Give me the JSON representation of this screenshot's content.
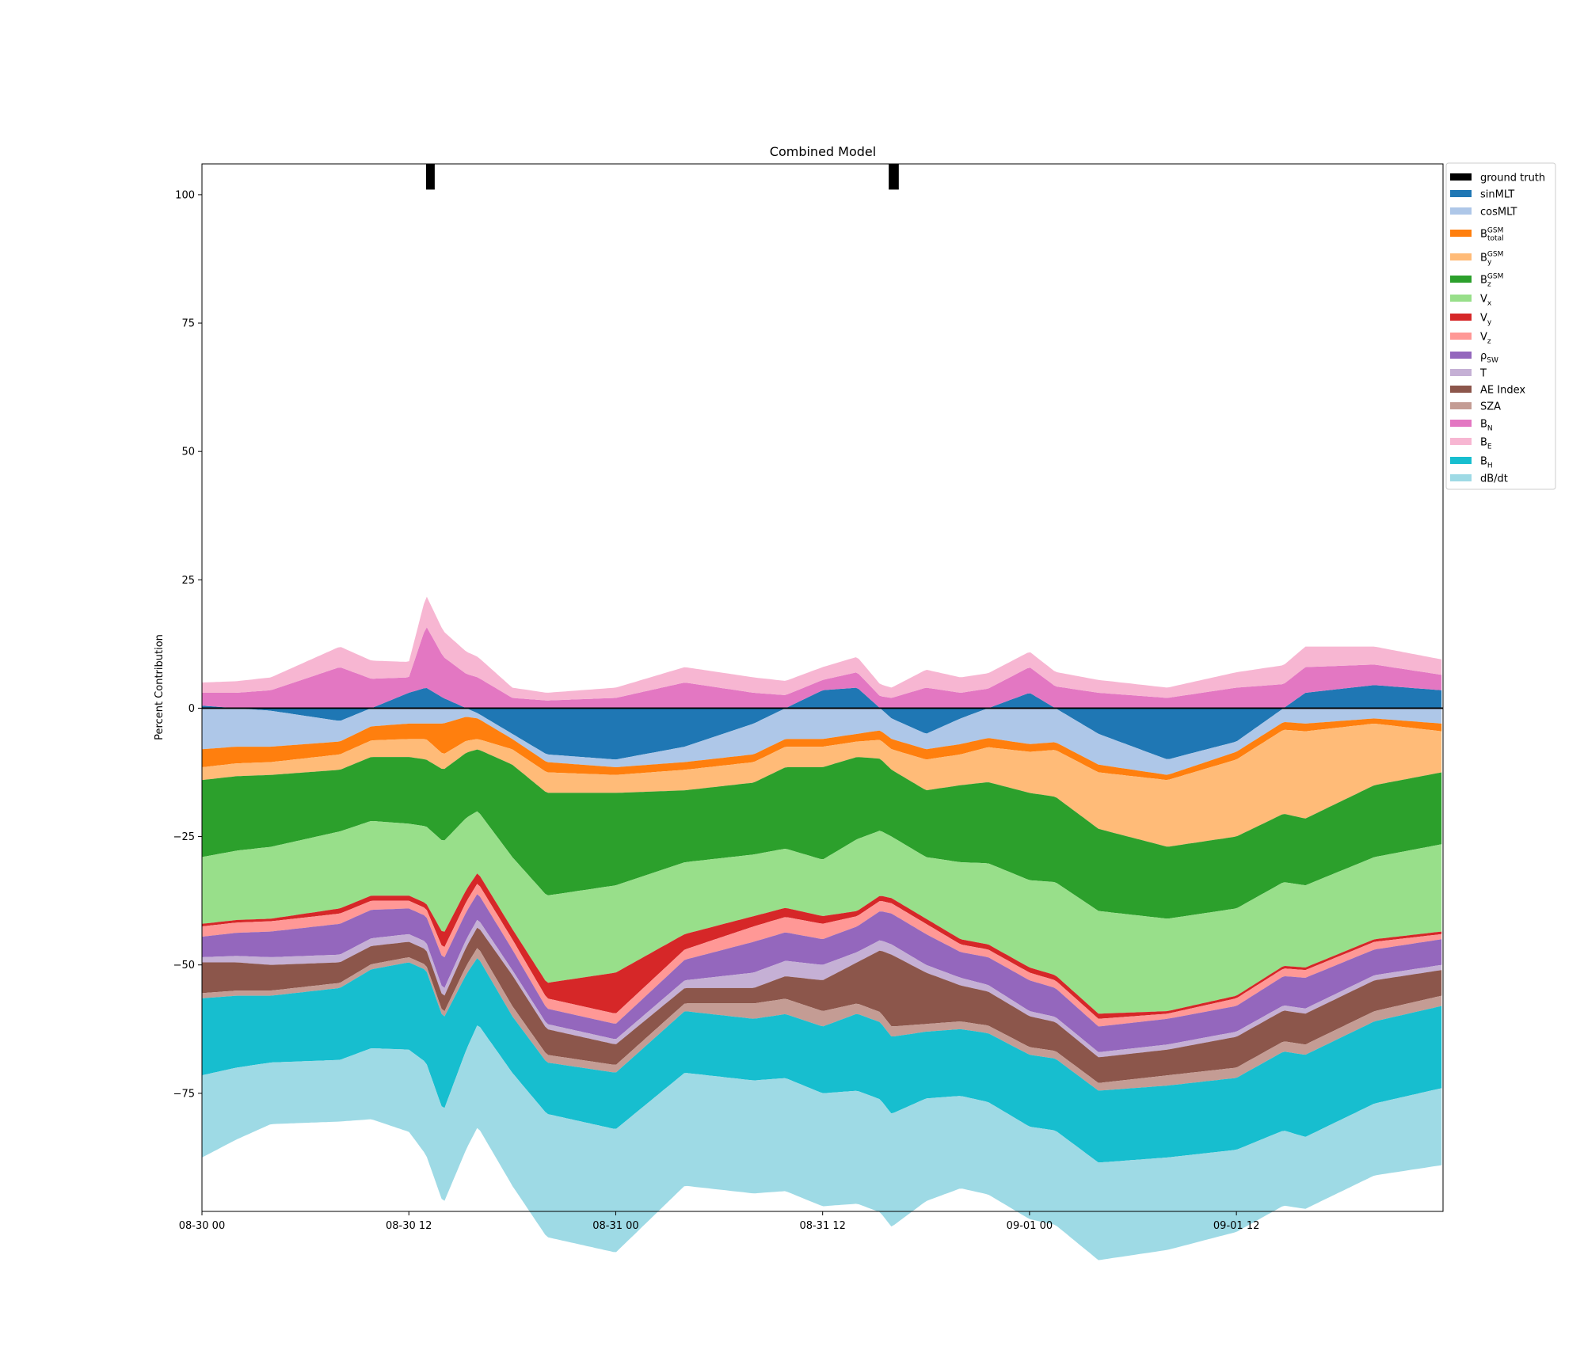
{
  "chart_data": {
    "type": "area",
    "title": "Combined Model",
    "ylabel": "Percent Contribution",
    "xlabel": "",
    "x_range": [
      "2017-08-30 00:00",
      "2017-09-01 23:59"
    ],
    "ylim": [
      -98,
      106
    ],
    "x_ticks": [
      {
        "label": "08-30 00",
        "t": "2017-08-30 00:00"
      },
      {
        "label": "08-30 12",
        "t": "2017-08-30 12:00"
      },
      {
        "label": "08-31 00",
        "t": "2017-08-31 00:00"
      },
      {
        "label": "08-31 12",
        "t": "2017-08-31 12:00"
      },
      {
        "label": "09-01 00",
        "t": "2017-09-01 00:00"
      },
      {
        "label": "09-01 12",
        "t": "2017-09-01 12:00"
      }
    ],
    "y_ticks": [
      {
        "label": "100",
        "v": 100
      },
      {
        "label": "75",
        "v": 75
      },
      {
        "label": "50",
        "v": 50
      },
      {
        "label": "25",
        "v": 25
      },
      {
        "label": "0",
        "v": 0
      },
      {
        "label": "−25",
        "v": -25
      },
      {
        "label": "−50",
        "v": -50
      },
      {
        "label": "−75",
        "v": -75
      }
    ],
    "ground_truth": [
      {
        "start": "2017-08-30 13:00",
        "end": "2017-08-30 13:30",
        "y0": 101,
        "y1": 106
      },
      {
        "start": "2017-08-31 15:50",
        "end": "2017-08-31 16:25",
        "y0": 101,
        "y1": 106
      }
    ],
    "legend": {
      "placement": "outside-upper-right",
      "entries": [
        {
          "label": "ground truth",
          "color": "#000000"
        },
        {
          "label": "sinMLT",
          "color": "#1f77b4"
        },
        {
          "label": "cosMLT",
          "color": "#aec7e8"
        },
        {
          "base": "B",
          "sub": "total",
          "sup": "GSM",
          "color": "#ff7f0e"
        },
        {
          "base": "B",
          "sub": "y",
          "sup": "GSM",
          "color": "#ffbb78"
        },
        {
          "base": "B",
          "sub": "z",
          "sup": "GSM",
          "color": "#2ca02c"
        },
        {
          "base": "V",
          "sub": "x",
          "color": "#98df8a"
        },
        {
          "base": "V",
          "sub": "y",
          "color": "#d62728"
        },
        {
          "base": "V",
          "sub": "z",
          "color": "#ff9896"
        },
        {
          "base": "ρ",
          "sub": "SW",
          "color": "#9467bd"
        },
        {
          "label": "T",
          "color": "#c5b0d5"
        },
        {
          "label": "AE Index",
          "color": "#8c564b"
        },
        {
          "label": "SZA",
          "color": "#c49c94"
        },
        {
          "base": "B",
          "sub": "N",
          "color": "#e377c2"
        },
        {
          "base": "B",
          "sub": "E",
          "color": "#f7b6d2"
        },
        {
          "base": "B",
          "sub": "H",
          "color": "#17becf"
        },
        {
          "label": "dB/dt",
          "color": "#9edae5"
        }
      ]
    },
    "x_hours": [
      0,
      4,
      8,
      12,
      13,
      14,
      16,
      18,
      20,
      24,
      28,
      32,
      36,
      38,
      40,
      42,
      44,
      48,
      52,
      56,
      60,
      64,
      68,
      71.9
    ],
    "series": [
      {
        "key": "sinMLT",
        "color": "#1f77b4",
        "values": [
          0.5,
          -0.5,
          -2.5,
          3.0,
          4.0,
          2.0,
          -1.0,
          -5.0,
          -9.0,
          -10.0,
          -7.5,
          -3.0,
          3.5,
          4.0,
          -2.0,
          -5.0,
          -2.0,
          3.0,
          -5.0,
          -10.0,
          -6.5,
          3.0,
          4.5,
          3.5
        ]
      },
      {
        "key": "cosMLT",
        "color": "#aec7e8",
        "values": [
          -8.0,
          -7.0,
          -4.0,
          -3.0,
          -3.0,
          -3.0,
          -1.0,
          -1.0,
          -1.5,
          -1.5,
          -3.0,
          -6.0,
          -6.0,
          -5.0,
          -4.0,
          -3.0,
          -5.0,
          -7.0,
          -6.0,
          -3.0,
          -2.0,
          -3.0,
          -2.0,
          -3.0
        ]
      },
      {
        "key": "B_total",
        "color": "#ff7f0e",
        "values": [
          -3.5,
          -3.0,
          -2.5,
          -3.0,
          -3.0,
          -6.0,
          -4.0,
          -2.0,
          -2.0,
          -1.5,
          -1.5,
          -1.5,
          -1.5,
          -1.5,
          -2.0,
          -2.0,
          -2.0,
          -1.5,
          -1.5,
          -1.0,
          -1.5,
          -1.5,
          -1.0,
          -1.5
        ]
      },
      {
        "key": "B_y",
        "color": "#ffbb78",
        "values": [
          -2.5,
          -2.5,
          -3.0,
          -3.5,
          -4.0,
          -3.0,
          -2.0,
          -3.0,
          -4.0,
          -3.5,
          -4.0,
          -4.0,
          -4.0,
          -3.0,
          -4.0,
          -6.0,
          -6.0,
          -8.0,
          -11.0,
          -13.0,
          -15.0,
          -17.0,
          -12.0,
          -8.0
        ]
      },
      {
        "key": "B_z",
        "color": "#2ca02c",
        "values": [
          -15.0,
          -14.0,
          -12.0,
          -13.0,
          -13.0,
          -14.0,
          -12.0,
          -18.0,
          -20.0,
          -18.0,
          -14.0,
          -14.0,
          -18.0,
          -16.0,
          -13.0,
          -13.0,
          -15.0,
          -17.0,
          -16.0,
          -14.0,
          -14.0,
          -13.0,
          -14.0,
          -14.0
        ]
      },
      {
        "key": "V_x",
        "color": "#98df8a",
        "values": [
          -13.0,
          -14.0,
          -15.0,
          -14.0,
          -15.0,
          -18.0,
          -12.0,
          -14.0,
          -17.0,
          -17.0,
          -14.0,
          -12.0,
          -11.0,
          -14.0,
          -12.0,
          -12.0,
          -15.0,
          -17.0,
          -20.0,
          -18.0,
          -17.0,
          -16.0,
          -16.0,
          -17.0
        ]
      },
      {
        "key": "V_y",
        "color": "#d62728",
        "values": [
          -0.5,
          -0.5,
          -1.0,
          -1.0,
          -1.0,
          -3.0,
          -2.0,
          -2.0,
          -3.0,
          -8.0,
          -3.0,
          -2.0,
          -1.5,
          -1.0,
          -1.0,
          -1.0,
          -1.0,
          -1.0,
          -1.0,
          -0.5,
          -0.5,
          -0.5,
          -0.5,
          -0.5
        ]
      },
      {
        "key": "V_z",
        "color": "#ff9896",
        "values": [
          -2.0,
          -2.0,
          -2.0,
          -1.5,
          -1.5,
          -2.0,
          -2.0,
          -2.0,
          -2.0,
          -2.0,
          -2.0,
          -3.0,
          -3.0,
          -2.0,
          -2.0,
          -2.0,
          -1.5,
          -1.5,
          -1.5,
          -1.0,
          -1.5,
          -1.5,
          -1.5,
          -1.0
        ]
      },
      {
        "key": "rho_SW",
        "color": "#9467bd",
        "values": [
          -4.0,
          -5.0,
          -6.0,
          -5.0,
          -5.0,
          -6.0,
          -5.0,
          -4.0,
          -3.0,
          -3.0,
          -4.0,
          -6.0,
          -5.0,
          -5.0,
          -6.0,
          -6.0,
          -5.0,
          -6.0,
          -5.0,
          -5.0,
          -5.0,
          -6.0,
          -5.0,
          -5.0
        ]
      },
      {
        "key": "T",
        "color": "#c5b0d5",
        "values": [
          -1.0,
          -1.5,
          -1.5,
          -1.5,
          -1.5,
          -1.5,
          -1.5,
          -1.0,
          -1.0,
          -1.0,
          -1.5,
          -3.0,
          -3.0,
          -2.0,
          -2.0,
          -1.5,
          -1.5,
          -1.0,
          -1.0,
          -1.0,
          -1.0,
          -1.0,
          -1.0,
          -1.0
        ]
      },
      {
        "key": "AE_Index",
        "color": "#8c564b",
        "values": [
          -6.0,
          -5.0,
          -4.0,
          -3.0,
          -3.0,
          -3.0,
          -4.0,
          -6.0,
          -5.0,
          -4.0,
          -3.0,
          -3.0,
          -6.0,
          -8.0,
          -14.0,
          -10.0,
          -7.0,
          -6.0,
          -5.0,
          -5.0,
          -6.0,
          -6.0,
          -6.0,
          -5.0
        ]
      },
      {
        "key": "SZA",
        "color": "#c49c94",
        "values": [
          -1.0,
          -1.0,
          -1.0,
          -1.0,
          -1.0,
          -1.0,
          -2.0,
          -2.0,
          -1.5,
          -1.5,
          -1.5,
          -3.0,
          -3.0,
          -2.0,
          -2.0,
          -1.5,
          -1.5,
          -1.5,
          -1.5,
          -2.0,
          -2.0,
          -2.0,
          -2.0,
          -2.0
        ]
      },
      {
        "key": "B_N",
        "color": "#e377c2",
        "values": [
          2.5,
          3.5,
          8.0,
          3.0,
          12.0,
          8.0,
          6.0,
          2.0,
          1.5,
          2.0,
          5.0,
          3.0,
          2.0,
          3.0,
          2.0,
          4.0,
          3.0,
          5.0,
          3.0,
          2.0,
          4.0,
          5.0,
          4.0,
          3.0
        ]
      },
      {
        "key": "B_E",
        "color": "#f7b6d2",
        "values": [
          2.0,
          2.5,
          4.0,
          3.0,
          6.0,
          5.0,
          4.0,
          2.0,
          1.5,
          2.0,
          3.0,
          3.0,
          2.5,
          3.0,
          2.0,
          3.5,
          3.0,
          3.0,
          2.5,
          2.0,
          3.0,
          4.0,
          3.5,
          3.0
        ]
      },
      {
        "key": "B_H",
        "color": "#17becf",
        "values": [
          -15.0,
          -13.0,
          -14.0,
          -17.0,
          -18.0,
          -18.0,
          -13.0,
          -11.0,
          -10.0,
          -11.0,
          -12.0,
          -12.0,
          -13.0,
          -15.0,
          -15.0,
          -13.0,
          -13.0,
          -14.0,
          -14.0,
          -14.0,
          -14.0,
          -16.0,
          -16.0,
          -16.0
        ]
      },
      {
        "key": "dB_dt",
        "color": "#9edae5",
        "values": [
          -16.0,
          -12.0,
          -12.0,
          -16.0,
          -18.0,
          -18.0,
          -20.0,
          -22.0,
          -24.0,
          -24.0,
          -22.0,
          -22.0,
          -22.0,
          -22.0,
          -22.0,
          -20.0,
          -18.0,
          -18.0,
          -19.0,
          -18.0,
          -16.0,
          -14.0,
          -14.0,
          -15.0
        ]
      }
    ]
  }
}
